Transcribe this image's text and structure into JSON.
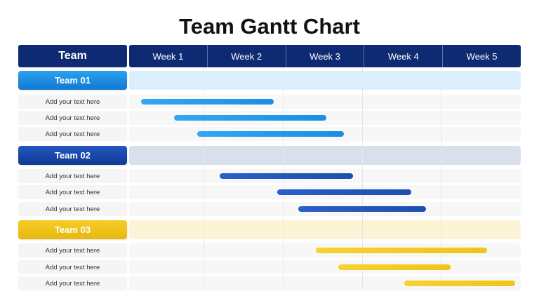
{
  "title": "Team Gantt Chart",
  "header": {
    "team_label": "Team",
    "weeks": [
      "Week 1",
      "Week 2",
      "Week 3",
      "Week 4",
      "Week 5"
    ]
  },
  "colors": {
    "header_bg": "#0d2a73",
    "team1": "#1a8fe3",
    "team2": "#1b4fb0",
    "team3": "#f0c419"
  },
  "teams": [
    {
      "name": "Team 01",
      "tasks": [
        {
          "label": "Add your text here",
          "start_week": 1.15,
          "end_week": 2.85
        },
        {
          "label": "Add your text here",
          "start_week": 1.57,
          "end_week": 3.52
        },
        {
          "label": "Add your text here",
          "start_week": 1.87,
          "end_week": 3.74
        }
      ]
    },
    {
      "name": "Team 02",
      "tasks": [
        {
          "label": "Add your text here",
          "start_week": 2.16,
          "end_week": 3.86
        },
        {
          "label": "Add your text here",
          "start_week": 2.89,
          "end_week": 4.6
        },
        {
          "label": "Add your text here",
          "start_week": 3.16,
          "end_week": 4.79
        }
      ]
    },
    {
      "name": "Team 03",
      "tasks": [
        {
          "label": "Add your text here",
          "start_week": 3.38,
          "end_week": 5.57
        },
        {
          "label": "Add your text here",
          "start_week": 3.67,
          "end_week": 5.1
        },
        {
          "label": "Add your text here",
          "start_week": 4.51,
          "end_week": 5.93
        }
      ]
    }
  ]
}
